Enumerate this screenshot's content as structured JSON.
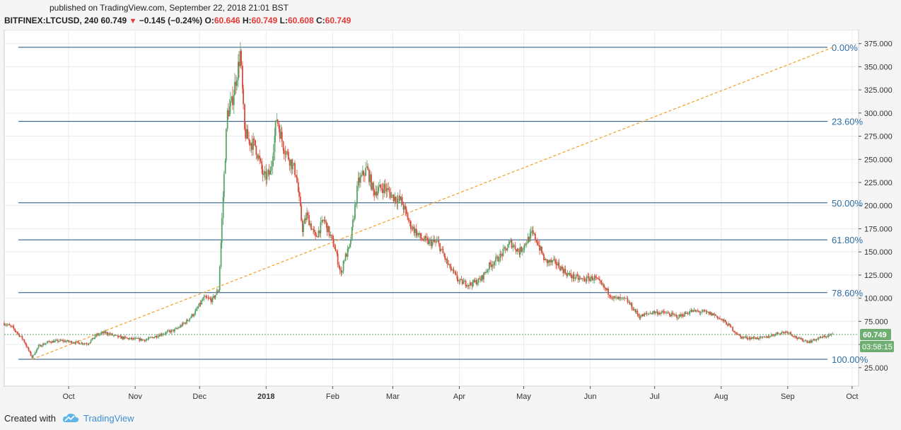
{
  "header": {
    "published_label": "published on TradingView.com, September 22, 2018 21:01 BST",
    "symbol": "BITFINEX:LTCUSD, 240",
    "last": "60.749",
    "change": "−0.145 (−0.24%)",
    "open_label": "O:",
    "open": "60.646",
    "high_label": "H:",
    "high": "60.749",
    "low_label": "L:",
    "low": "60.608",
    "close_label": "C:",
    "close": "60.749"
  },
  "footer": {
    "created_label": "Created with",
    "brand": "TradingView"
  },
  "colors": {
    "up": "#5aa469",
    "down": "#d94f3d",
    "fib_line": "#1f4e79",
    "fib_text": "#2e6da4",
    "trend": "#f59d1f",
    "price_label_bg": "#6fae73"
  },
  "chart_data": {
    "type": "candlestick",
    "ylim": [
      5,
      390
    ],
    "yticks": [
      "25.000",
      "50.000",
      "75.000",
      "100.000",
      "125.000",
      "150.000",
      "175.000",
      "200.000",
      "225.000",
      "250.000",
      "275.000",
      "300.000",
      "325.000",
      "350.000",
      "375.000"
    ],
    "ytick_values": [
      25,
      50,
      75,
      100,
      125,
      150,
      175,
      200,
      225,
      250,
      275,
      300,
      325,
      350,
      375
    ],
    "xticks": [
      "Oct",
      "Nov",
      "Dec",
      "2018",
      "Feb",
      "Mar",
      "Apr",
      "May",
      "Jun",
      "Jul",
      "Aug",
      "Sep",
      "Oct"
    ],
    "xtick_months": [
      1,
      2,
      3,
      4,
      5,
      6,
      7,
      8,
      9,
      10,
      11,
      12,
      13
    ],
    "x_start": "2017-09-01",
    "x_end": "2018-10-04",
    "fibonacci": [
      {
        "label": "0.00%",
        "value": 371
      },
      {
        "label": "23.60%",
        "value": 291
      },
      {
        "label": "50.00%",
        "value": 203
      },
      {
        "label": "61.80%",
        "value": 163
      },
      {
        "label": "78.60%",
        "value": 106
      },
      {
        "label": "100.00%",
        "value": 34
      }
    ],
    "trendline": {
      "from": [
        "2017-09-14",
        34
      ],
      "to": [
        "2018-09-22",
        371
      ]
    },
    "last_price": {
      "value": 60.749,
      "label": "60.749",
      "countdown": "03:58:15"
    },
    "series_close": [
      [
        "2017-09-01",
        73
      ],
      [
        "2017-09-05",
        68
      ],
      [
        "2017-09-10",
        55
      ],
      [
        "2017-09-14",
        36
      ],
      [
        "2017-09-17",
        48
      ],
      [
        "2017-09-22",
        53
      ],
      [
        "2017-09-28",
        54
      ],
      [
        "2017-10-05",
        52
      ],
      [
        "2017-10-10",
        51
      ],
      [
        "2017-10-14",
        60
      ],
      [
        "2017-10-18",
        63
      ],
      [
        "2017-10-24",
        58
      ],
      [
        "2017-10-30",
        56
      ],
      [
        "2017-11-06",
        55
      ],
      [
        "2017-11-13",
        61
      ],
      [
        "2017-11-20",
        66
      ],
      [
        "2017-11-25",
        75
      ],
      [
        "2017-11-29",
        85
      ],
      [
        "2017-12-03",
        100
      ],
      [
        "2017-12-07",
        98
      ],
      [
        "2017-12-10",
        110
      ],
      [
        "2017-12-12",
        210
      ],
      [
        "2017-12-14",
        300
      ],
      [
        "2017-12-16",
        310
      ],
      [
        "2017-12-19",
        350
      ],
      [
        "2017-12-20",
        365
      ],
      [
        "2017-12-22",
        280
      ],
      [
        "2017-12-24",
        270
      ],
      [
        "2017-12-27",
        265
      ],
      [
        "2017-12-31",
        230
      ],
      [
        "2018-01-03",
        235
      ],
      [
        "2018-01-06",
        295
      ],
      [
        "2018-01-09",
        265
      ],
      [
        "2018-01-12",
        250
      ],
      [
        "2018-01-15",
        235
      ],
      [
        "2018-01-18",
        175
      ],
      [
        "2018-01-20",
        190
      ],
      [
        "2018-01-24",
        165
      ],
      [
        "2018-01-28",
        185
      ],
      [
        "2018-02-02",
        155
      ],
      [
        "2018-02-05",
        125
      ],
      [
        "2018-02-06",
        140
      ],
      [
        "2018-02-09",
        155
      ],
      [
        "2018-02-13",
        225
      ],
      [
        "2018-02-17",
        240
      ],
      [
        "2018-02-20",
        215
      ],
      [
        "2018-02-25",
        220
      ],
      [
        "2018-03-01",
        210
      ],
      [
        "2018-03-05",
        205
      ],
      [
        "2018-03-09",
        180
      ],
      [
        "2018-03-14",
        165
      ],
      [
        "2018-03-18",
        160
      ],
      [
        "2018-03-22",
        160
      ],
      [
        "2018-03-27",
        135
      ],
      [
        "2018-04-01",
        118
      ],
      [
        "2018-04-06",
        115
      ],
      [
        "2018-04-11",
        120
      ],
      [
        "2018-04-15",
        135
      ],
      [
        "2018-04-20",
        145
      ],
      [
        "2018-04-25",
        160
      ],
      [
        "2018-04-29",
        150
      ],
      [
        "2018-05-05",
        170
      ],
      [
        "2018-05-07",
        163
      ],
      [
        "2018-05-11",
        140
      ],
      [
        "2018-05-16",
        138
      ],
      [
        "2018-05-22",
        125
      ],
      [
        "2018-05-28",
        120
      ],
      [
        "2018-06-03",
        122
      ],
      [
        "2018-06-08",
        110
      ],
      [
        "2018-06-12",
        100
      ],
      [
        "2018-06-18",
        98
      ],
      [
        "2018-06-24",
        80
      ],
      [
        "2018-06-30",
        85
      ],
      [
        "2018-07-06",
        84
      ],
      [
        "2018-07-12",
        80
      ],
      [
        "2018-07-18",
        86
      ],
      [
        "2018-07-24",
        85
      ],
      [
        "2018-07-29",
        82
      ],
      [
        "2018-08-04",
        72
      ],
      [
        "2018-08-10",
        58
      ],
      [
        "2018-08-15",
        57
      ],
      [
        "2018-08-21",
        57
      ],
      [
        "2018-08-27",
        62
      ],
      [
        "2018-09-01",
        64
      ],
      [
        "2018-09-06",
        56
      ],
      [
        "2018-09-11",
        53
      ],
      [
        "2018-09-16",
        57
      ],
      [
        "2018-09-22",
        61
      ]
    ]
  }
}
